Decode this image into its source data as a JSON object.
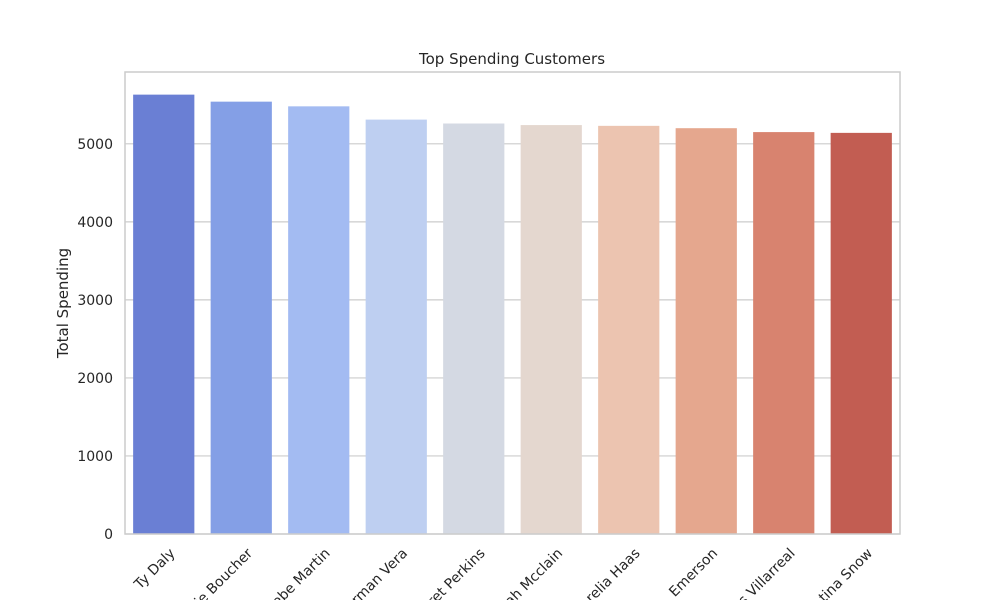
{
  "chart_data": {
    "type": "bar",
    "title": "Top Spending Customers",
    "xlabel": "",
    "ylabel": "Total Spending",
    "categories": [
      "Ty Daly",
      "ie Boucher",
      "ebe Martin",
      "rman Vera",
      "ret Perkins",
      "ah Mcclain",
      "relia Haas",
      "Emerson",
      "s Villarreal",
      "tina Snow"
    ],
    "values": [
      5630,
      5540,
      5480,
      5310,
      5260,
      5240,
      5230,
      5200,
      5150,
      5140
    ],
    "colors": [
      "#6a7fd4",
      "#849fe6",
      "#a3bbf2",
      "#becff1",
      "#d4d9e3",
      "#e4d7cf",
      "#ecc4b0",
      "#e5a78e",
      "#d8836f",
      "#c25d52"
    ],
    "yticks": [
      0,
      1000,
      2000,
      3000,
      4000,
      5000
    ],
    "ylim": [
      0,
      5920
    ],
    "grid": true,
    "legend": "none"
  }
}
